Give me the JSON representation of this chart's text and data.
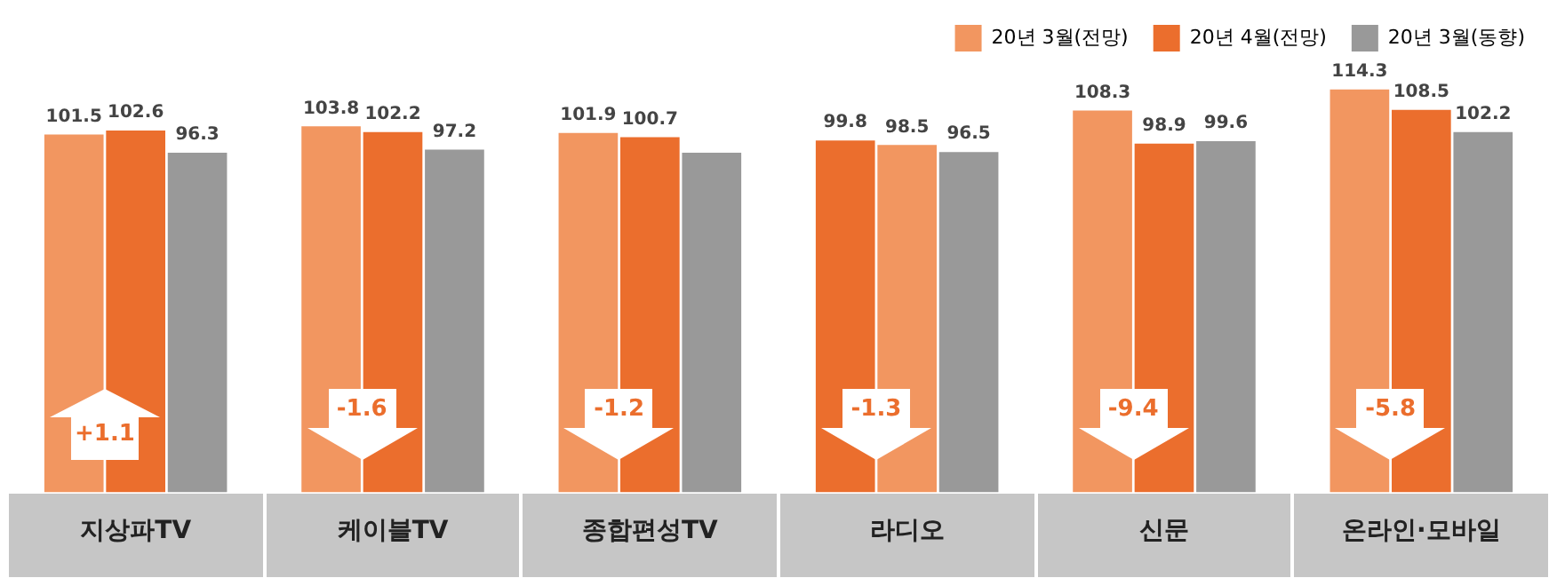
{
  "chart_data": {
    "type": "bar",
    "categories": [
      "지상파TV",
      "케이블TV",
      "종합편성TV",
      "라디오",
      "신문",
      "온라인·모바일"
    ],
    "series": [
      {
        "name": "20년 3월(전망)",
        "color": "#f29660",
        "colors": [
          "#f29660",
          "#f29660",
          "#f29660",
          "#eb6e2d",
          "#f29660",
          "#f29660"
        ],
        "values": [
          101.5,
          103.8,
          101.9,
          99.8,
          108.3,
          114.3
        ],
        "value_labels": [
          "101.5",
          "103.8",
          "101.9",
          "99.8",
          "108.3",
          "114.3"
        ]
      },
      {
        "name": "20년 4월(전망)",
        "color": "#eb6e2d",
        "colors": [
          "#eb6e2d",
          "#eb6e2d",
          "#eb6e2d",
          "#f29660",
          "#eb6e2d",
          "#eb6e2d"
        ],
        "values": [
          102.6,
          102.2,
          100.7,
          98.5,
          98.9,
          108.5
        ],
        "value_labels": [
          "102.6",
          "102.2",
          "100.7",
          "98.5",
          "98.9",
          "108.5"
        ]
      },
      {
        "name": "20년 3월(동향)",
        "color": "#999999",
        "values": [
          96.3,
          97.2,
          96.3,
          96.5,
          99.6,
          102.2
        ],
        "value_labels": [
          "96.3",
          "97.2",
          null,
          "96.5",
          "99.6",
          "102.2"
        ]
      }
    ],
    "tick_labels": "x",
    "legend": "top right",
    "annotations": [
      "+1.1",
      "-1.6",
      "-1.2",
      "-1.3",
      "-9.4",
      "-5.8"
    ]
  }
}
